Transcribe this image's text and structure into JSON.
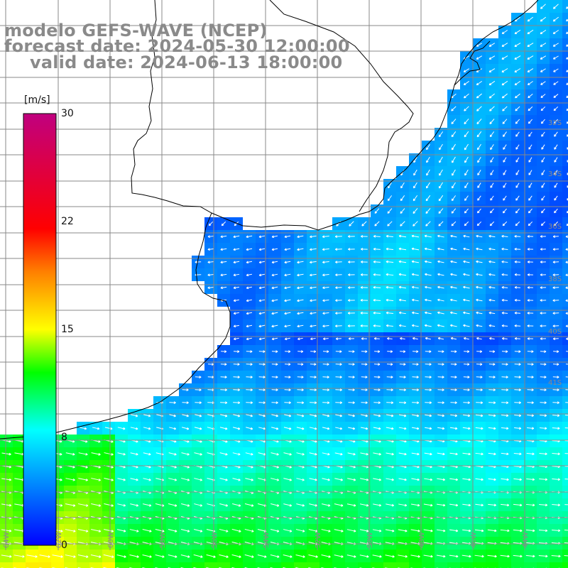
{
  "title": {
    "line1": "modelo GEFS-WAVE (NCEP)",
    "line2": "forecast date: 2024-05-30 12:00:00",
    "line3": "valid date: 2024-06-13 18:00:00"
  },
  "colorbar": {
    "unit": "[m/s]",
    "ticks": [
      "30",
      "22",
      "15",
      "8",
      "0"
    ],
    "min": 0,
    "max": 30,
    "colors": [
      "#0000ff",
      "#0080ff",
      "#00ffff",
      "#00ff00",
      "#ffff00",
      "#ff8000",
      "#ff0000",
      "#c0007f"
    ]
  },
  "map": {
    "land_color": "#ffffff",
    "grid_color": "#888888",
    "coast_color": "#000000",
    "arrow_color": "#ffffff",
    "lat_labels": [
      "32S",
      "34S",
      "36S",
      "38S",
      "40S",
      "41S"
    ],
    "lon_labels": [
      "64W",
      "62W",
      "60W",
      "58W",
      "56W",
      "54W",
      "52W",
      "50W",
      "48W",
      "46W",
      "44W"
    ]
  }
}
